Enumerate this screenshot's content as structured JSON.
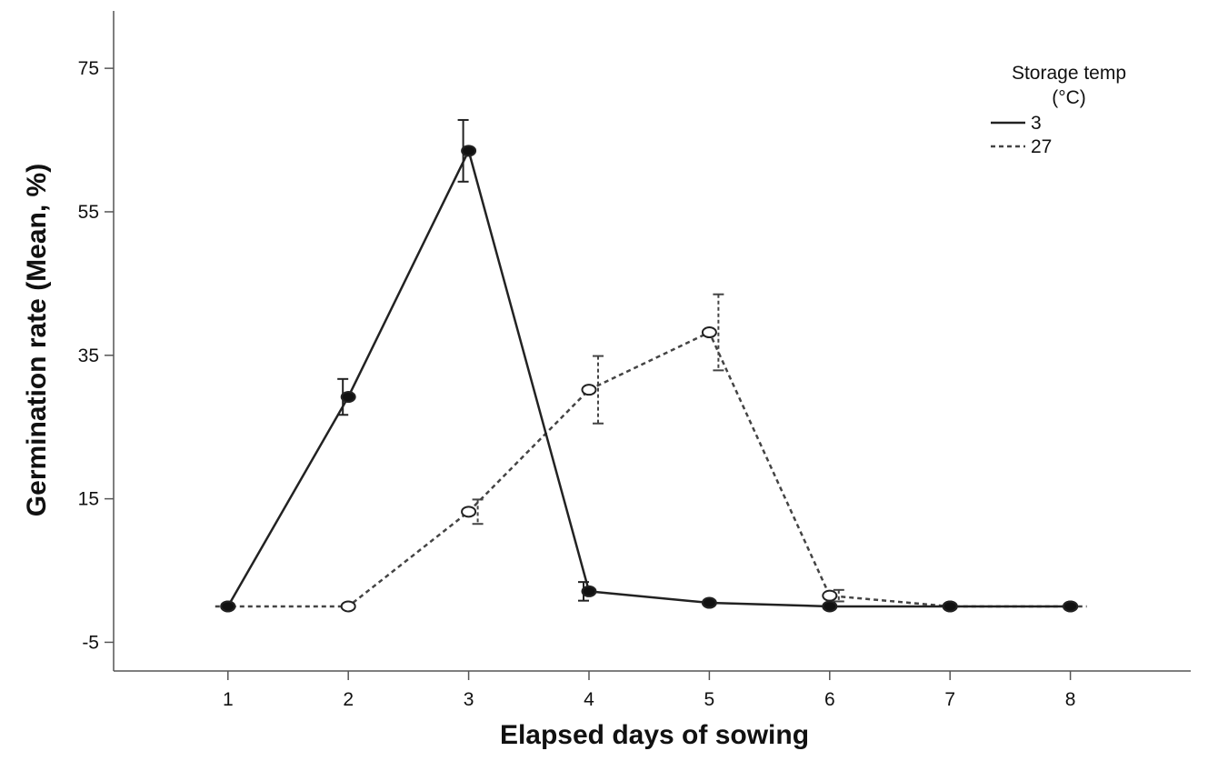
{
  "chart_data": {
    "type": "line",
    "title": "",
    "xlabel": "Elapsed days of sowing",
    "ylabel": "Germination rate (Mean, %)",
    "x": [
      1,
      2,
      3,
      4,
      5,
      6,
      7,
      8
    ],
    "xlim": [
      0.05,
      9.0
    ],
    "ylim": [
      -9,
      83
    ],
    "yticks": [
      -5,
      15,
      35,
      55,
      75
    ],
    "xticks": [
      1,
      2,
      3,
      4,
      5,
      6,
      7,
      8
    ],
    "grid": false,
    "legend": {
      "title_line1": "Storage temp",
      "title_line2": "(°C)",
      "placement": "top-right"
    },
    "series": [
      {
        "name": "3",
        "line_style": "solid",
        "marker": "filled-circle",
        "color": "#222222",
        "values": [
          0,
          29.2,
          63.5,
          2.1,
          0.5,
          0.0,
          0.0,
          0.0
        ],
        "error": [
          null,
          2.5,
          4.3,
          1.3,
          null,
          null,
          null,
          null
        ]
      },
      {
        "name": "27",
        "line_style": "dashed",
        "marker": "open-circle",
        "color": "#444444",
        "values": [
          0,
          0,
          13.2,
          30.2,
          38.2,
          1.5,
          0.0,
          0.0
        ],
        "error": [
          null,
          null,
          1.7,
          4.7,
          5.3,
          0.8,
          null,
          null
        ]
      }
    ]
  }
}
